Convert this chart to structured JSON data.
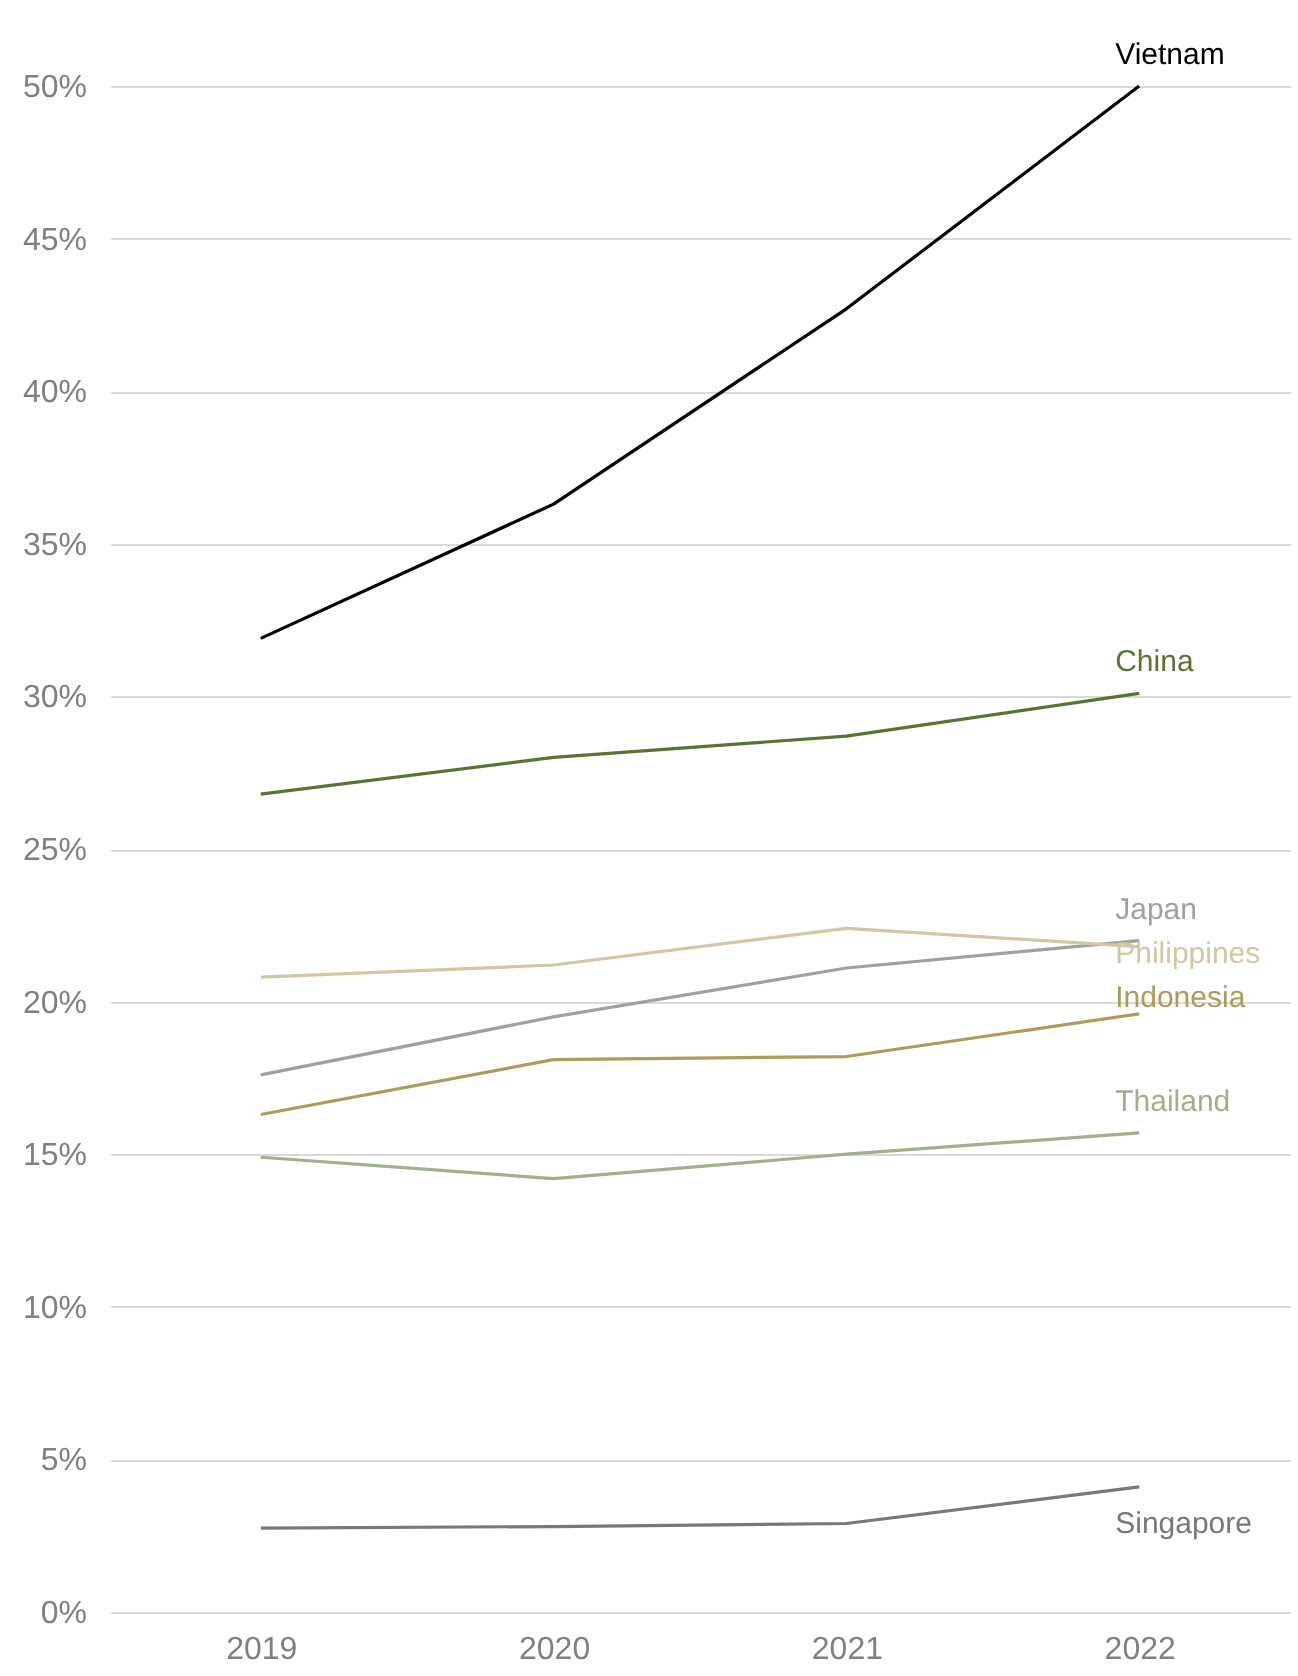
{
  "chart_data": {
    "type": "line",
    "categories": [
      "2019",
      "2020",
      "2021",
      "2022"
    ],
    "ylim": [
      0,
      50
    ],
    "yticks": [
      {
        "value": 0,
        "label": "0%"
      },
      {
        "value": 5,
        "label": "5%"
      },
      {
        "value": 10,
        "label": "10%"
      },
      {
        "value": 15,
        "label": "15%"
      },
      {
        "value": 20,
        "label": "20%"
      },
      {
        "value": 25,
        "label": "25%"
      },
      {
        "value": 30,
        "label": "30%"
      },
      {
        "value": 35,
        "label": "35%"
      },
      {
        "value": 40,
        "label": "40%"
      },
      {
        "value": 45,
        "label": "45%"
      },
      {
        "value": 50,
        "label": "50%"
      }
    ],
    "grid": "y",
    "legend": false,
    "marker": "none",
    "line_style": "solid",
    "series": [
      {
        "name": "Vietnam",
        "color": "#000000",
        "values": [
          31.9,
          36.3,
          42.7,
          50.0
        ]
      },
      {
        "name": "China",
        "color": "#5a7232",
        "values": [
          26.8,
          28.0,
          28.7,
          30.1
        ]
      },
      {
        "name": "Japan",
        "color": "#a0a0a0",
        "values": [
          17.6,
          19.5,
          21.1,
          22.0
        ]
      },
      {
        "name": "Philippines",
        "color": "#d4c6a0",
        "values": [
          20.8,
          21.2,
          22.4,
          21.8
        ]
      },
      {
        "name": "Indonesia",
        "color": "#b09a5a",
        "values": [
          16.3,
          18.1,
          18.2,
          19.6
        ]
      },
      {
        "name": "Thailand",
        "color": "#a0b08a",
        "values": [
          14.9,
          14.2,
          15.0,
          15.7
        ]
      },
      {
        "name": "Singapore",
        "color": "#787878",
        "values": [
          2.75,
          2.8,
          2.9,
          4.1
        ]
      }
    ]
  }
}
